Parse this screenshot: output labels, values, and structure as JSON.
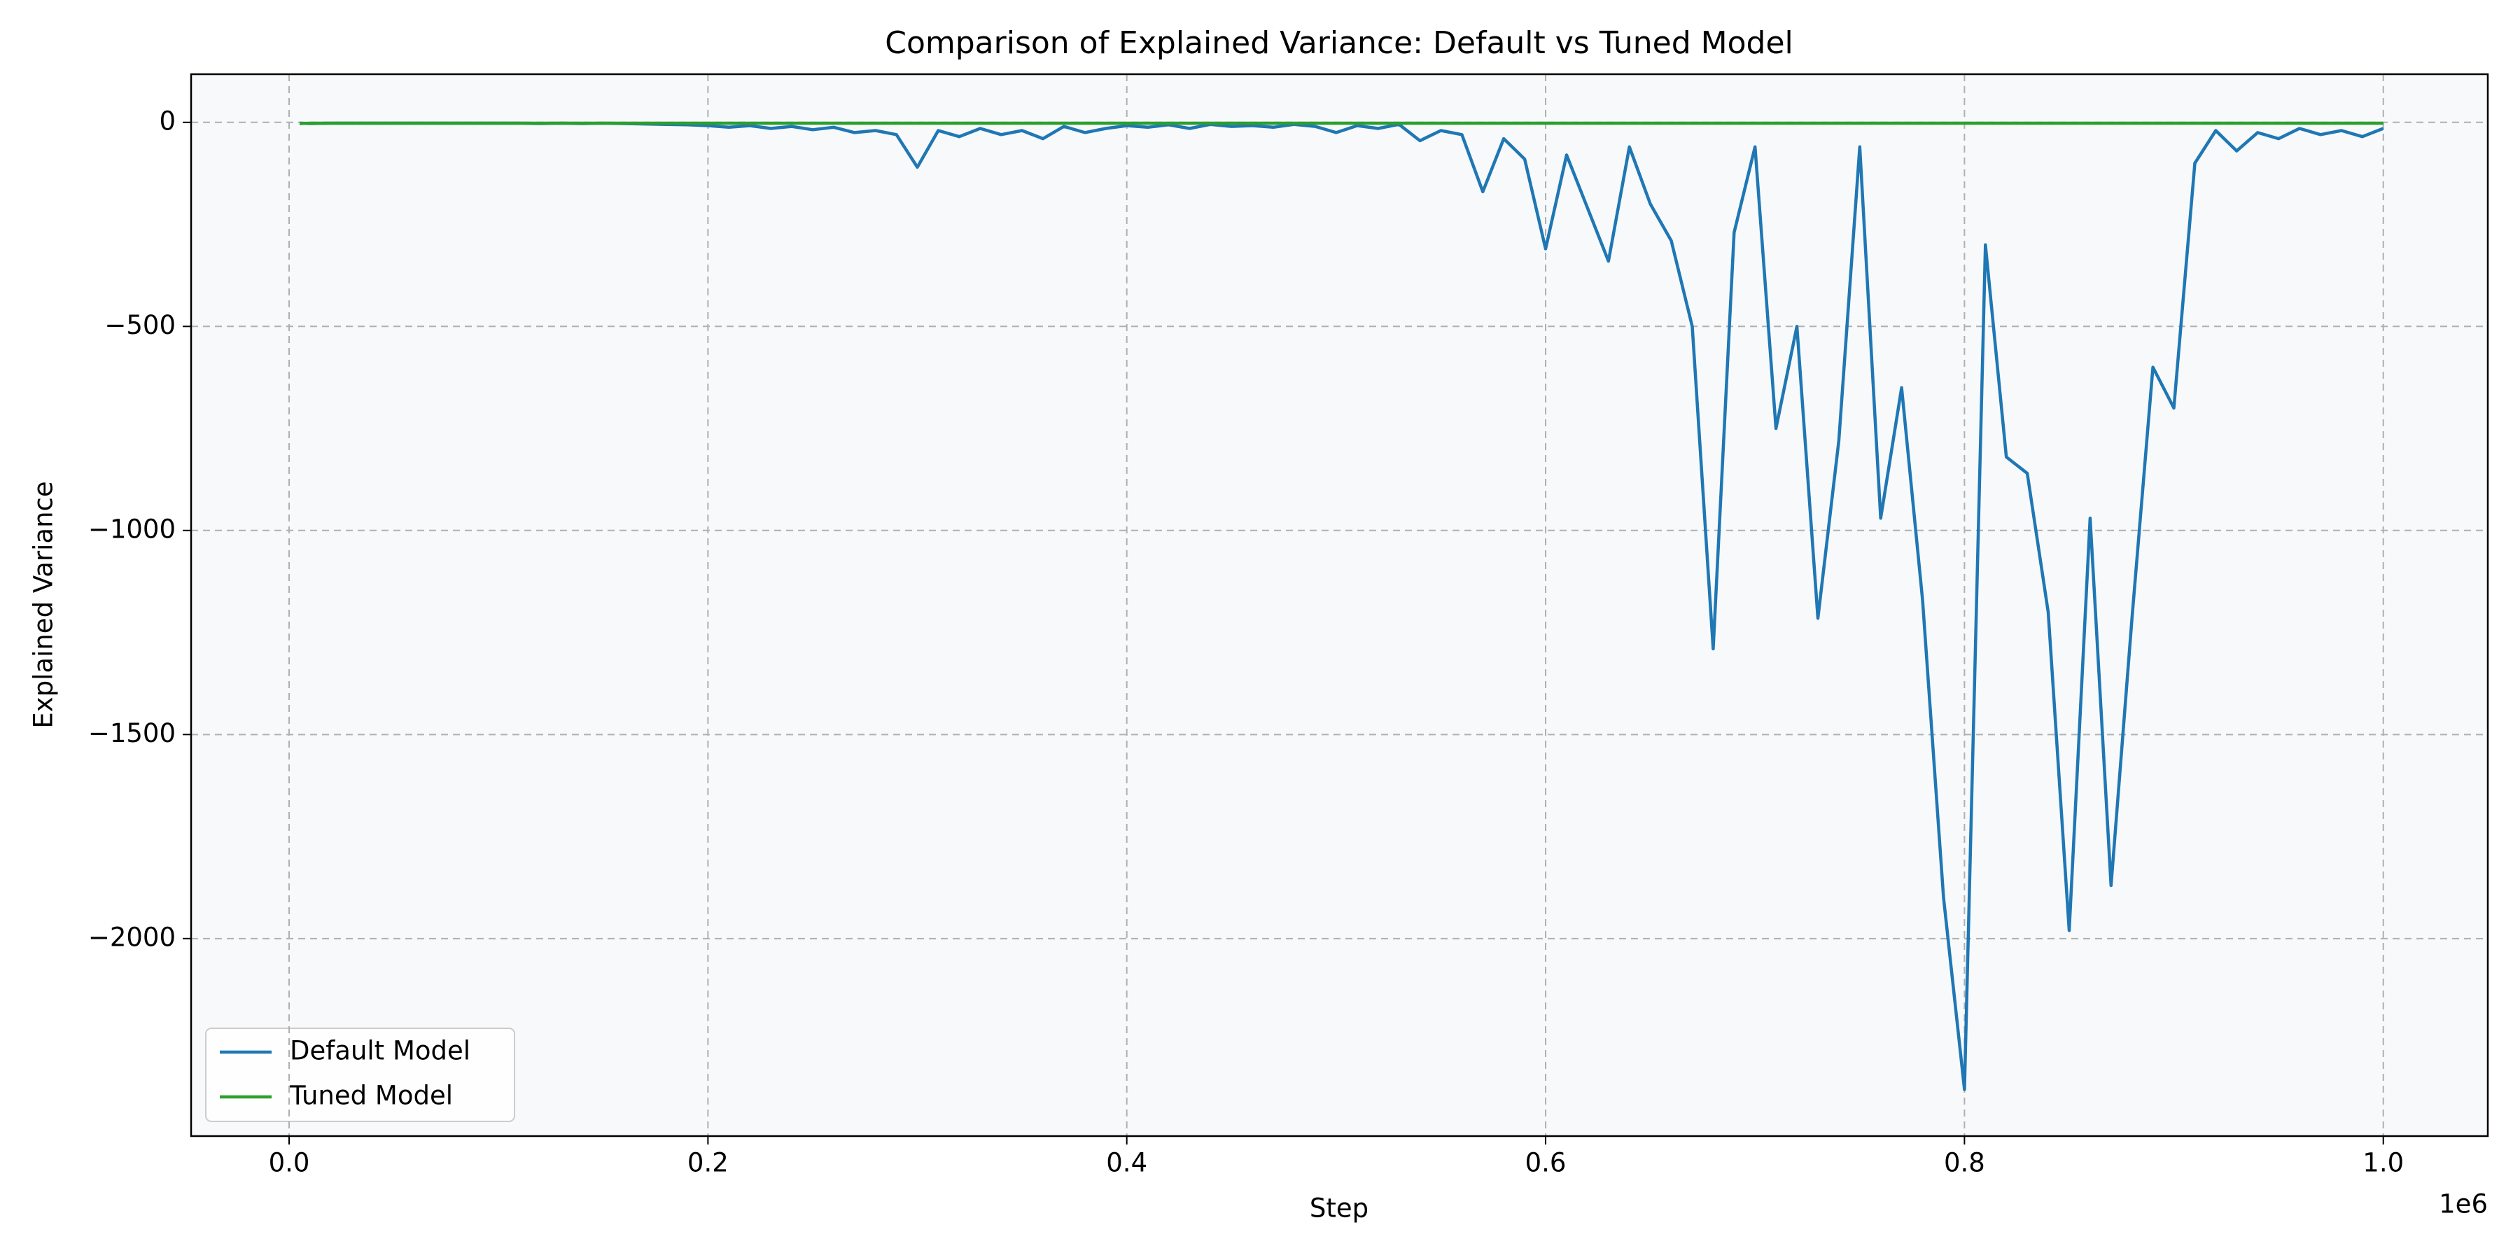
{
  "chart_data": {
    "type": "line",
    "title": "Comparison of Explained Variance: Default vs Tuned Model",
    "xlabel": "Step",
    "ylabel": "Explained Variance",
    "x_offset_label": "1e6",
    "x": [
      5000,
      10000,
      20000,
      30000,
      40000,
      50000,
      60000,
      70000,
      80000,
      90000,
      100000,
      110000,
      120000,
      130000,
      140000,
      150000,
      160000,
      170000,
      180000,
      190000,
      200000,
      210000,
      220000,
      230000,
      240000,
      250000,
      260000,
      270000,
      280000,
      290000,
      300000,
      310000,
      320000,
      330000,
      340000,
      350000,
      360000,
      370000,
      380000,
      390000,
      400000,
      410000,
      420000,
      430000,
      440000,
      450000,
      460000,
      470000,
      480000,
      490000,
      500000,
      510000,
      520000,
      530000,
      540000,
      550000,
      560000,
      570000,
      580000,
      590000,
      600000,
      610000,
      620000,
      630000,
      640000,
      650000,
      660000,
      670000,
      680000,
      690000,
      700000,
      710000,
      720000,
      730000,
      740000,
      750000,
      760000,
      770000,
      780000,
      790000,
      800000,
      810000,
      820000,
      830000,
      840000,
      850000,
      860000,
      870000,
      880000,
      890000,
      900000,
      910000,
      920000,
      930000,
      940000,
      950000,
      960000,
      970000,
      980000,
      990000,
      1000000
    ],
    "series": [
      {
        "name": "Default Model",
        "color": "#1f77b4",
        "values": [
          -2,
          -3,
          -2,
          -2,
          -2,
          -2,
          -2,
          -2,
          -2,
          -2,
          -2,
          -2,
          -3,
          -2,
          -3,
          -2,
          -3,
          -4,
          -5,
          -6,
          -8,
          -12,
          -8,
          -15,
          -10,
          -18,
          -12,
          -25,
          -20,
          -30,
          -110,
          -20,
          -35,
          -15,
          -30,
          -20,
          -40,
          -10,
          -25,
          -15,
          -8,
          -12,
          -6,
          -15,
          -5,
          -10,
          -8,
          -12,
          -5,
          -10,
          -25,
          -8,
          -15,
          -5,
          -45,
          -20,
          -30,
          -170,
          -40,
          -90,
          -310,
          -80,
          -210,
          -340,
          -60,
          -200,
          -290,
          -500,
          -1290,
          -270,
          -60,
          -750,
          -500,
          -1215,
          -780,
          -60,
          -970,
          -650,
          -1170,
          -1900,
          -2370,
          -300,
          -820,
          -860,
          -1200,
          -1980,
          -970,
          -1870,
          -1215,
          -600,
          -700,
          -100,
          -20,
          -70,
          -25,
          -40,
          -15,
          -30,
          -20,
          -35,
          -15
        ]
      },
      {
        "name": "Tuned Model",
        "color": "#2ca02c",
        "values": [
          -3,
          -2,
          -2,
          -2,
          -2,
          -2,
          -2,
          -2,
          -2,
          -2,
          -2,
          -2,
          -2,
          -2,
          -2,
          -2,
          -2,
          -2,
          -2,
          -2,
          -2,
          -2,
          -2,
          -2,
          -2,
          -2,
          -2,
          -2,
          -2,
          -2,
          -2,
          -2,
          -2,
          -2,
          -2,
          -2,
          -2,
          -2,
          -2,
          -2,
          -2,
          -2,
          -2,
          -2,
          -2,
          -2,
          -2,
          -2,
          -2,
          -2,
          -2,
          -2,
          -2,
          -2,
          -2,
          -2,
          -2,
          -2,
          -2,
          -2,
          -2,
          -2,
          -2,
          -2,
          -2,
          -2,
          -2,
          -2,
          -2,
          -2,
          -2,
          -2,
          -2,
          -2,
          -2,
          -2,
          -2,
          -2,
          -2,
          -2,
          -2,
          -2,
          -2,
          -2,
          -2,
          -2,
          -2,
          -2,
          -2,
          -2,
          -2,
          -2,
          -2,
          -2,
          -2,
          -2,
          -2,
          -2,
          -2,
          -2,
          -2
        ]
      }
    ],
    "xlim": [
      -46800,
      1049900
    ],
    "ylim": [
      -2484,
      118
    ],
    "xticks": [
      {
        "value": 0,
        "label": "0.0"
      },
      {
        "value": 200000,
        "label": "0.2"
      },
      {
        "value": 400000,
        "label": "0.4"
      },
      {
        "value": 600000,
        "label": "0.6"
      },
      {
        "value": 800000,
        "label": "0.8"
      },
      {
        "value": 1000000,
        "label": "1.0"
      }
    ],
    "yticks": [
      0,
      {
        "value": -500,
        "label": "−500"
      },
      {
        "value": -1000,
        "label": "−1000"
      },
      {
        "value": -1500,
        "label": "−1500"
      },
      {
        "value": -2000,
        "label": "−2000"
      }
    ],
    "grid": true,
    "legend": "lower left"
  }
}
